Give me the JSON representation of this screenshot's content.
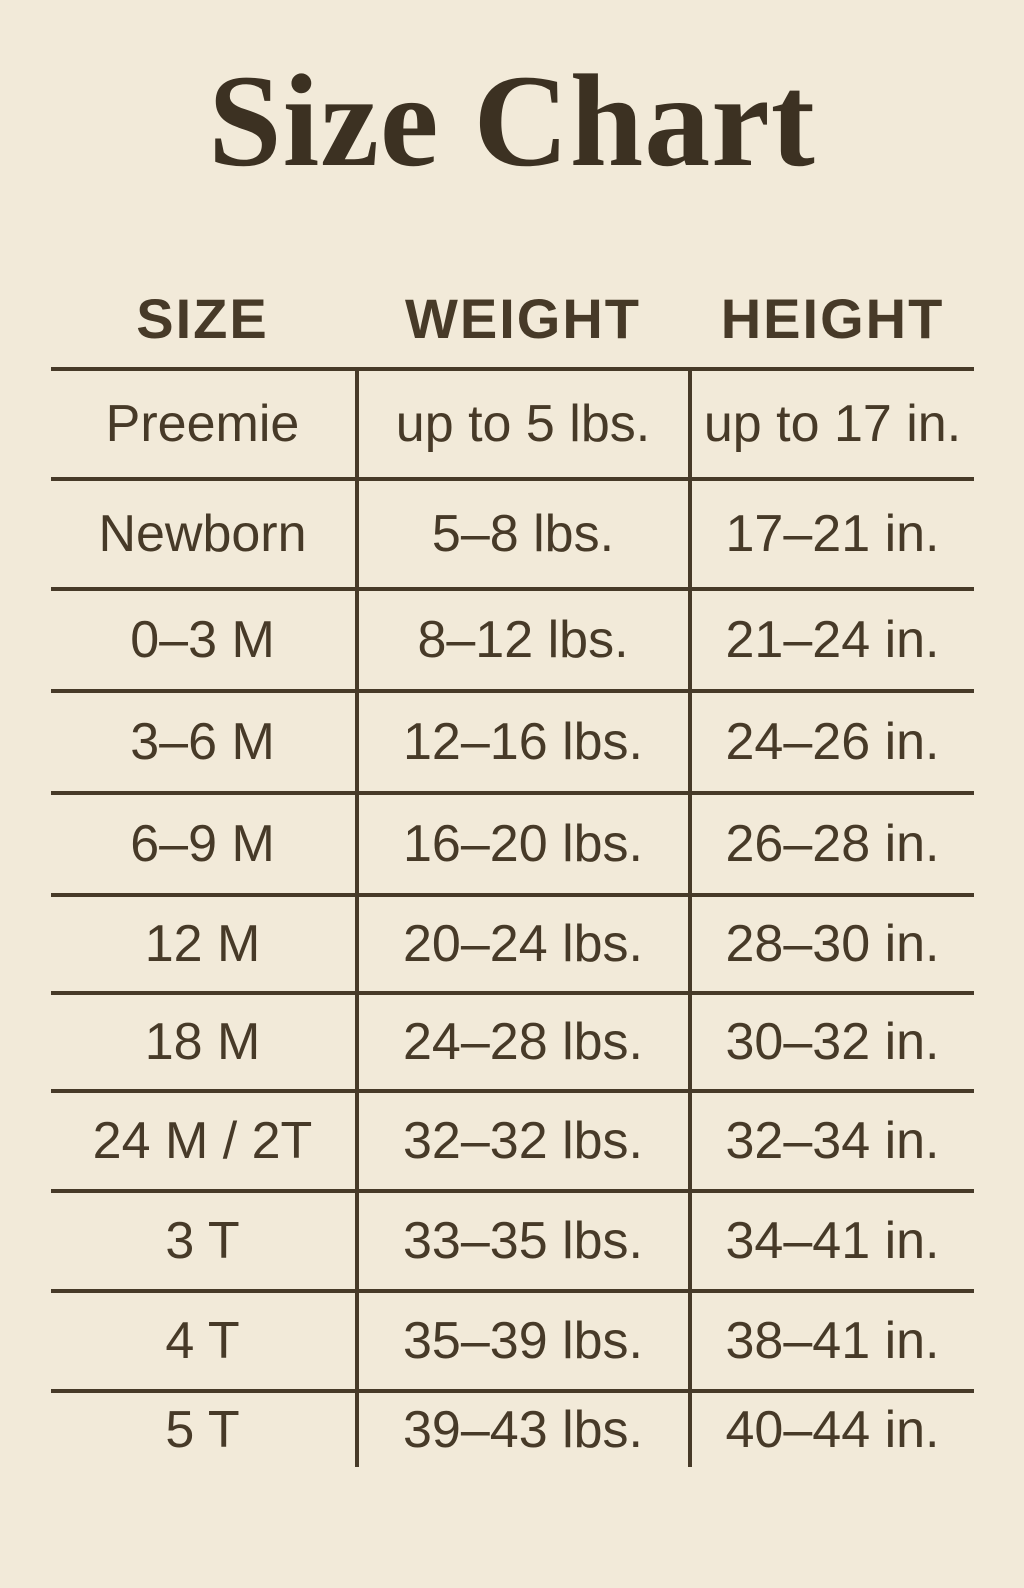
{
  "colors": {
    "background": "#f2ead9",
    "text": "#473a28",
    "title_text": "#3c3122",
    "rule_lines": "#473a28"
  },
  "chart_data": {
    "type": "table",
    "title": "Size Chart",
    "columns": [
      "SIZE",
      "WEIGHT",
      "HEIGHT"
    ],
    "rows": [
      [
        "Preemie",
        "up to 5 lbs.",
        "up to 17 in."
      ],
      [
        "Newborn",
        "5–8 lbs.",
        "17–21 in."
      ],
      [
        "0–3 M",
        "8–12 lbs.",
        "21–24 in."
      ],
      [
        "3–6 M",
        "12–16 lbs.",
        "24–26 in."
      ],
      [
        "6–9 M",
        "16–20 lbs.",
        "26–28 in."
      ],
      [
        "12 M",
        "20–24 lbs.",
        "28–30 in."
      ],
      [
        "18 M",
        "24–28 lbs.",
        "30–32 in."
      ],
      [
        "24 M / 2T",
        "32–32 lbs.",
        "32–34 in."
      ],
      [
        "3 T",
        "33–35 lbs.",
        "34–41 in."
      ],
      [
        "4 T",
        "35–39 lbs.",
        "38–41 in."
      ],
      [
        "5 T",
        "39–43 lbs.",
        "40–44 in."
      ]
    ],
    "layout": {
      "grid": "horizontal rules between rows, vertical rules between columns only, no outer border",
      "legend_position": "none"
    }
  }
}
